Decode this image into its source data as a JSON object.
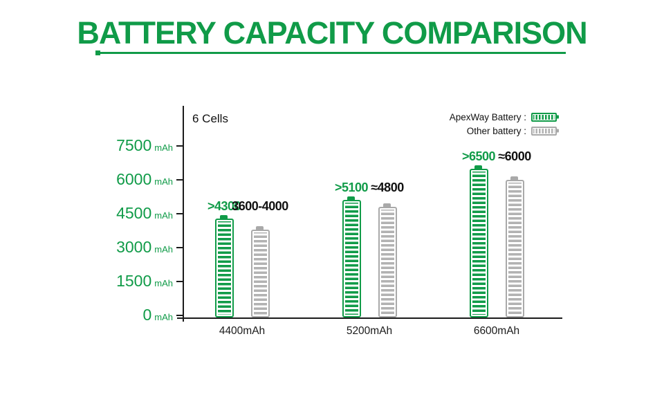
{
  "title": "BATTERY CAPACITY COMPARISON",
  "colors": {
    "green": "#109b48",
    "gray": "#b2b2b2",
    "gray_border": "#a9a9a9",
    "axis": "#1a1a1a",
    "text_dark": "#111111"
  },
  "chart_data": {
    "type": "bar",
    "title": "BATTERY CAPACITY COMPARISON",
    "group_label": "6 Cells",
    "unit": "mAh",
    "ylim": [
      0,
      7500
    ],
    "y_ticks": [
      7500,
      6000,
      4500,
      3000,
      1500,
      0
    ],
    "grid": false,
    "legend_position": "top-right",
    "categories": [
      "4400mAh",
      "5200mAh",
      "6600mAh"
    ],
    "series": [
      {
        "name": "ApexWay Battery",
        "legend_label": "ApexWay Battery :",
        "color_key": "green",
        "values": [
          4300,
          5100,
          6500
        ],
        "value_labels": [
          ">4300",
          ">5100",
          ">6500"
        ]
      },
      {
        "name": "Other battery",
        "legend_label": "Other battery :",
        "color_key": "gray",
        "values": [
          3800,
          4800,
          6000
        ],
        "value_labels": [
          "3600-4000",
          "≈4800",
          "≈6000"
        ]
      }
    ]
  }
}
